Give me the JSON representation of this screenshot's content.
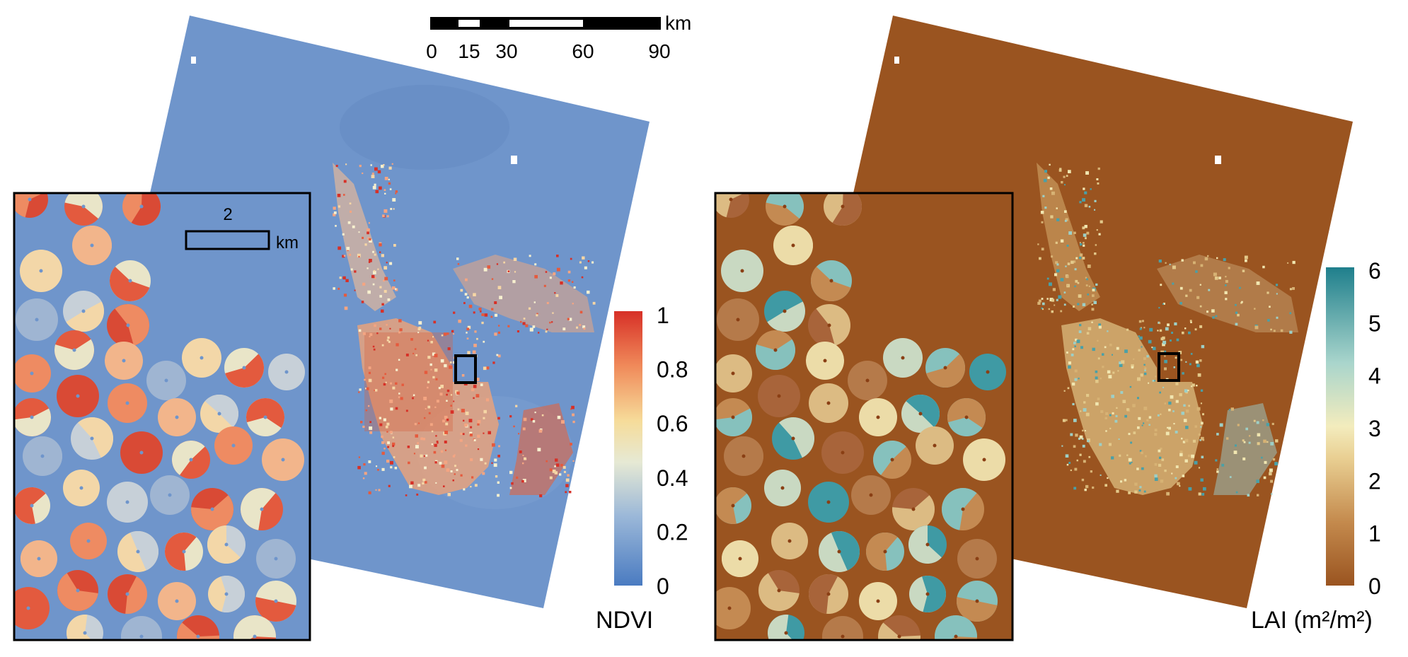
{
  "scale_bar": {
    "unit": "km",
    "ticks": [
      "0",
      "15",
      "30",
      "60",
      "90"
    ]
  },
  "inset_scale": {
    "value": "2",
    "unit": "km"
  },
  "ndvi_panel": {
    "legend_title": "NDVI",
    "legend_ticks": [
      "1",
      "0.8",
      "0.6",
      "0.4",
      "0.2",
      "0"
    ],
    "legend_range": [
      0,
      1
    ],
    "colors": {
      "low": "#4a7bc1",
      "mid": "#f3efc0",
      "high": "#d73027",
      "background": "#6f95cb"
    }
  },
  "lai_panel": {
    "legend_title": "LAI (m²/m²)",
    "legend_ticks": [
      "6",
      "5",
      "4",
      "3",
      "2",
      "1",
      "0"
    ],
    "legend_range": [
      0,
      6
    ],
    "colors": {
      "low": "#9a5420",
      "mid": "#f1e6b0",
      "high": "#1f7f8c",
      "background": "#9a5420"
    }
  }
}
